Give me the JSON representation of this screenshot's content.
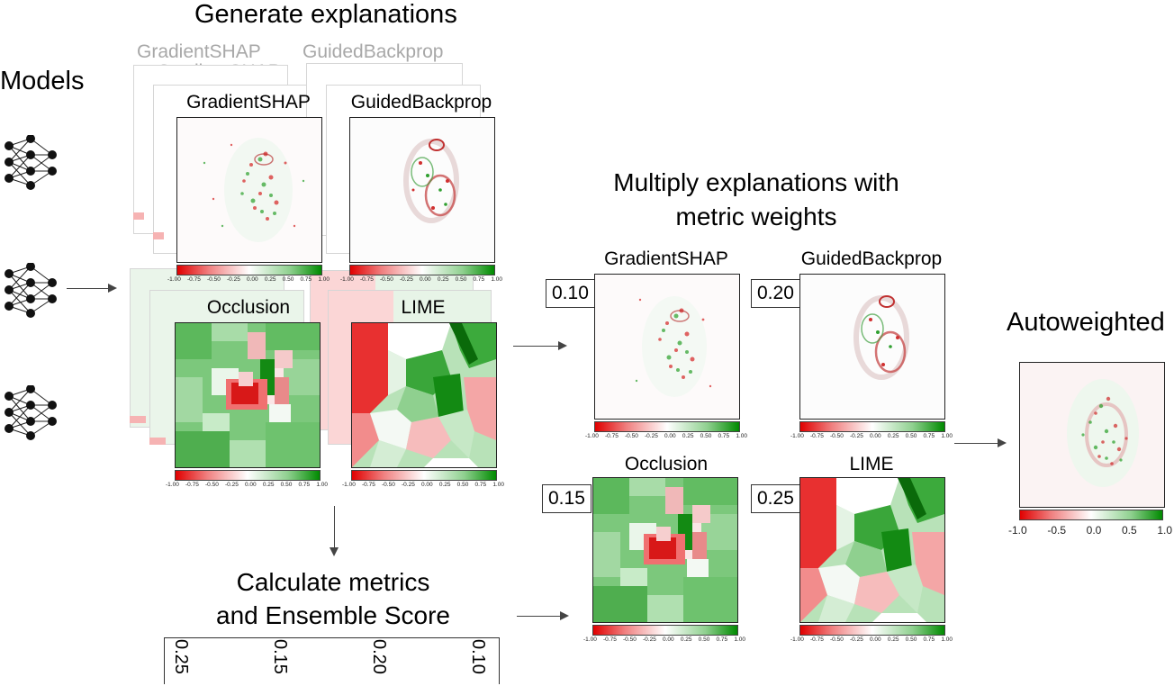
{
  "titles": {
    "generate": "Generate explanations",
    "models": "Models",
    "multiply": [
      "Multiply explanations with",
      "metric weights"
    ],
    "calculate": [
      "Calculate metrics",
      "and Ensemble Score"
    ],
    "autoweighted": "Autoweighted"
  },
  "methods": {
    "gradientshap": "GradientSHAP",
    "guidedbackprop": "GuidedBackprop",
    "occlusion": "Occlusion",
    "lime": "LIME"
  },
  "weights": {
    "gradientshap": "0.10",
    "guidedbackprop": "0.20",
    "occlusion": "0.15",
    "lime": "0.25"
  },
  "ensemble_scores": [
    "0.25",
    "0.15",
    "0.20",
    "0.10"
  ],
  "colorbar_small_ticks": [
    "-1.00",
    "-0.75",
    "-0.50",
    "-0.25",
    "0.00",
    "0.25",
    "0.50",
    "0.75",
    "1.00"
  ],
  "colorbar_large_ticks": [
    "-1.0",
    "-0.5",
    "0.0",
    "0.5",
    "1.0"
  ],
  "colors": {
    "negative": "#e00000",
    "neutral": "#ffffff",
    "positive": "#008a00"
  }
}
